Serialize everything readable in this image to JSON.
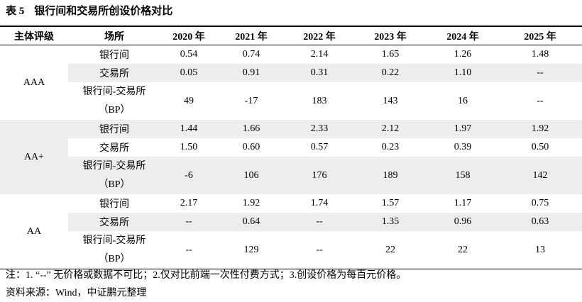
{
  "title": {
    "label": "表 5",
    "text": "银行间和交易所创设价格对比"
  },
  "table": {
    "header": [
      "主体评级",
      "场所",
      "2020 年",
      "2021 年",
      "2022 年",
      "2023 年",
      "2024 年",
      "2025 年"
    ],
    "groups": [
      {
        "rating": "AAA",
        "rows": [
          [
            "银行间",
            "0.54",
            "0.74",
            "2.14",
            "1.65",
            "1.26",
            "1.48"
          ],
          [
            "交易所",
            "0.05",
            "0.91",
            "0.31",
            "0.22",
            "1.10",
            "--"
          ],
          [
            "银行间-交易所（BP）",
            "49",
            "-17",
            "183",
            "143",
            "16",
            "--"
          ]
        ]
      },
      {
        "rating": "AA+",
        "rows": [
          [
            "银行间",
            "1.44",
            "1.66",
            "2.33",
            "2.12",
            "1.97",
            "1.92"
          ],
          [
            "交易所",
            "1.50",
            "0.60",
            "0.57",
            "0.23",
            "0.39",
            "0.50"
          ],
          [
            "银行间-交易所（BP）",
            "-6",
            "106",
            "176",
            "189",
            "158",
            "142"
          ]
        ]
      },
      {
        "rating": "AA",
        "rows": [
          [
            "银行间",
            "2.17",
            "1.92",
            "1.74",
            "1.57",
            "1.17",
            "0.75"
          ],
          [
            "交易所",
            "--",
            "0.64",
            "--",
            "1.35",
            "0.96",
            "0.63"
          ],
          [
            "银行间-交易所（BP）",
            "--",
            "129",
            "--",
            "22",
            "22",
            "13"
          ]
        ]
      }
    ]
  },
  "notes": [
    "注：1. “--” 无价格或数据不可比；2.仅对比前端一次性付费方式；3.创设价格为每百元价格。",
    "资料来源：Wind，中证鹏元整理"
  ]
}
